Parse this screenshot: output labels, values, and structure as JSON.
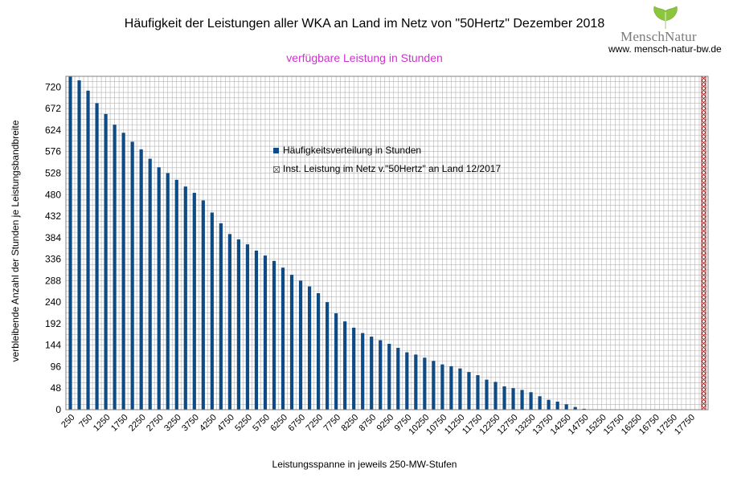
{
  "title": "Häufigkeit der Leistungen aller WKA an Land im Netz von \"50Hertz\" Dezember 2018",
  "subtitle": "verfügbare Leistung in Stunden",
  "brand": {
    "logo_text": "MenschNatur",
    "url": "www. mensch-natur-bw.de",
    "leaf_color": "#8cc63f"
  },
  "colors": {
    "bars": "#0e4a84",
    "marker": "#8b0000",
    "subtitle": "#cc33cc",
    "grid": "#b3b3b3"
  },
  "chart_data": {
    "type": "bar",
    "title": "Häufigkeit der Leistungen aller WKA an Land im Netz von \"50Hertz\" Dezember 2018",
    "subtitle": "verfügbare Leistung in Stunden",
    "xlabel": "Leistungsspanne in jeweils 250-MW-Stufen",
    "ylabel": "verbleibende Anzahl der Stunden je Leistungsbandbreite",
    "ylim": [
      0,
      744
    ],
    "yticks": [
      0,
      48,
      96,
      144,
      192,
      240,
      288,
      336,
      384,
      432,
      480,
      528,
      576,
      624,
      672,
      720
    ],
    "xticks": [
      "250",
      "750",
      "1250",
      "1750",
      "2250",
      "2750",
      "3250",
      "3750",
      "4250",
      "4750",
      "5250",
      "5750",
      "6250",
      "6750",
      "7250",
      "7750",
      "8250",
      "8750",
      "9250",
      "9750",
      "10250",
      "10750",
      "11250",
      "11750",
      "12250",
      "12750",
      "13250",
      "13750",
      "14250",
      "14750",
      "15250",
      "15750",
      "16250",
      "16750",
      "17250",
      "17750"
    ],
    "grid": true,
    "legend_position": "center",
    "series": [
      {
        "name": "Häufigkeitsverteilung in Stunden",
        "x_start": 250,
        "x_step": 250,
        "values": [
          744,
          735,
          712,
          684,
          660,
          636,
          618,
          598,
          581,
          560,
          541,
          528,
          513,
          498,
          484,
          467,
          440,
          416,
          392,
          380,
          369,
          355,
          344,
          332,
          317,
          301,
          288,
          275,
          260,
          240,
          215,
          197,
          183,
          171,
          163,
          155,
          147,
          138,
          128,
          123,
          116,
          109,
          101,
          97,
          92,
          84,
          77,
          67,
          62,
          52,
          48,
          44,
          39,
          30,
          22,
          18,
          12,
          6,
          2,
          0,
          0,
          0,
          0,
          0,
          0,
          0,
          0,
          0,
          0,
          0,
          0,
          0,
          0,
          0,
          0
        ]
      },
      {
        "name": "Inst. Leistung im Netz v.\"50Hertz\" an Land 12/2017",
        "x": 18125,
        "value": 744
      }
    ]
  }
}
